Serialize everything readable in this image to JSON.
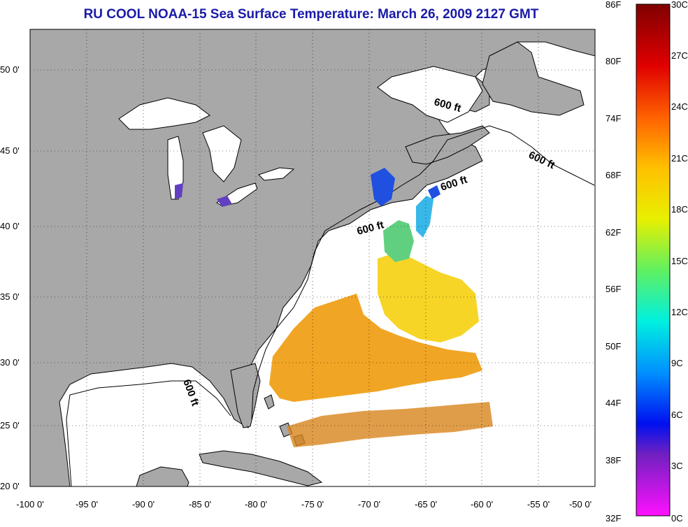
{
  "title": "RU COOL  NOAA-15  Sea Surface Temperature:  March 26, 2009 2127 GMT",
  "colors": {
    "title": "#1a1aa8",
    "land": "#a8a8a8",
    "ocean": "#ffffff"
  },
  "map": {
    "lon_range": [
      -100,
      -50
    ],
    "lat_range": [
      20,
      52.5
    ],
    "lon_ticks": [
      "-100 0'",
      "-95 0'",
      "-90 0'",
      "-85 0'",
      "-80 0'",
      "-75 0'",
      "-70 0'",
      "-65 0'",
      "-60 0'",
      "-55 0'",
      "-50 0'"
    ],
    "lat_ticks": [
      "50 0'",
      "45 0'",
      "40 0'",
      "35 0'",
      "30 0'",
      "25 0'",
      "20 0'"
    ],
    "contour_labels": [
      "600 ft",
      "600 ft",
      "600 ft",
      "600 ft",
      "600 ft"
    ]
  },
  "colorbar": {
    "f_labels": [
      "86F",
      "80F",
      "74F",
      "68F",
      "62F",
      "56F",
      "50F",
      "44F",
      "38F",
      "32F"
    ],
    "c_labels": [
      "30C",
      "27C",
      "24C",
      "21C",
      "18C",
      "15C",
      "12C",
      "9C",
      "6C",
      "3C",
      "0C"
    ]
  }
}
